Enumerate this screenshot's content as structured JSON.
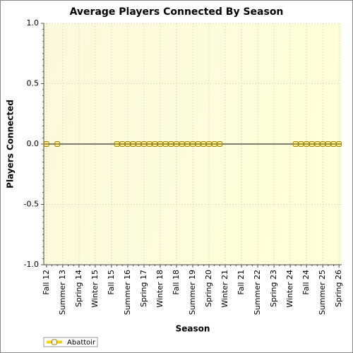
{
  "chart_data": {
    "type": "scatter",
    "title": "Average Players Connected By Season",
    "x_label": "Season",
    "y_label": "Players Connected",
    "categories": [
      "Fall 12",
      null,
      null,
      "Summer 13",
      null,
      null,
      "Spring 14",
      null,
      null,
      "Winter 15",
      null,
      null,
      "Fall 15",
      null,
      null,
      "Summer 16",
      null,
      null,
      "Spring 17",
      null,
      null,
      "Winter 18",
      null,
      null,
      "Fall 18",
      null,
      null,
      "Summer 19",
      null,
      null,
      "Spring 20",
      null,
      null,
      "Winter 21",
      null,
      null,
      "Fall 21",
      null,
      null,
      "Summer 22",
      null,
      null,
      "Spring 23",
      null,
      null,
      "Winter 24",
      null,
      null,
      "Fall 24",
      null,
      null,
      "Summer 25",
      null,
      null,
      "Spring 26"
    ],
    "series": [
      {
        "name": "Abattoir",
        "color": "#f2d20a",
        "values": [
          0,
          null,
          0,
          null,
          null,
          null,
          null,
          null,
          null,
          null,
          null,
          null,
          null,
          0,
          0,
          0,
          0,
          0,
          0,
          0,
          0,
          0,
          0,
          0,
          0,
          0,
          0,
          0,
          0,
          0,
          0,
          0,
          0,
          null,
          null,
          null,
          null,
          null,
          null,
          null,
          null,
          null,
          null,
          null,
          null,
          null,
          0,
          0,
          0,
          0,
          0,
          0,
          0,
          0,
          0
        ]
      }
    ],
    "ylim": [
      -1,
      1
    ],
    "yticks": [
      {
        "value": -1,
        "label": "-1.0"
      },
      {
        "value": -0.5,
        "label": "-0.5"
      },
      {
        "value": 0,
        "label": "0.0"
      },
      {
        "value": 0.5,
        "label": "0.5"
      },
      {
        "value": 1,
        "label": "1.0"
      }
    ],
    "grid": true,
    "legend": "bottom-left"
  }
}
